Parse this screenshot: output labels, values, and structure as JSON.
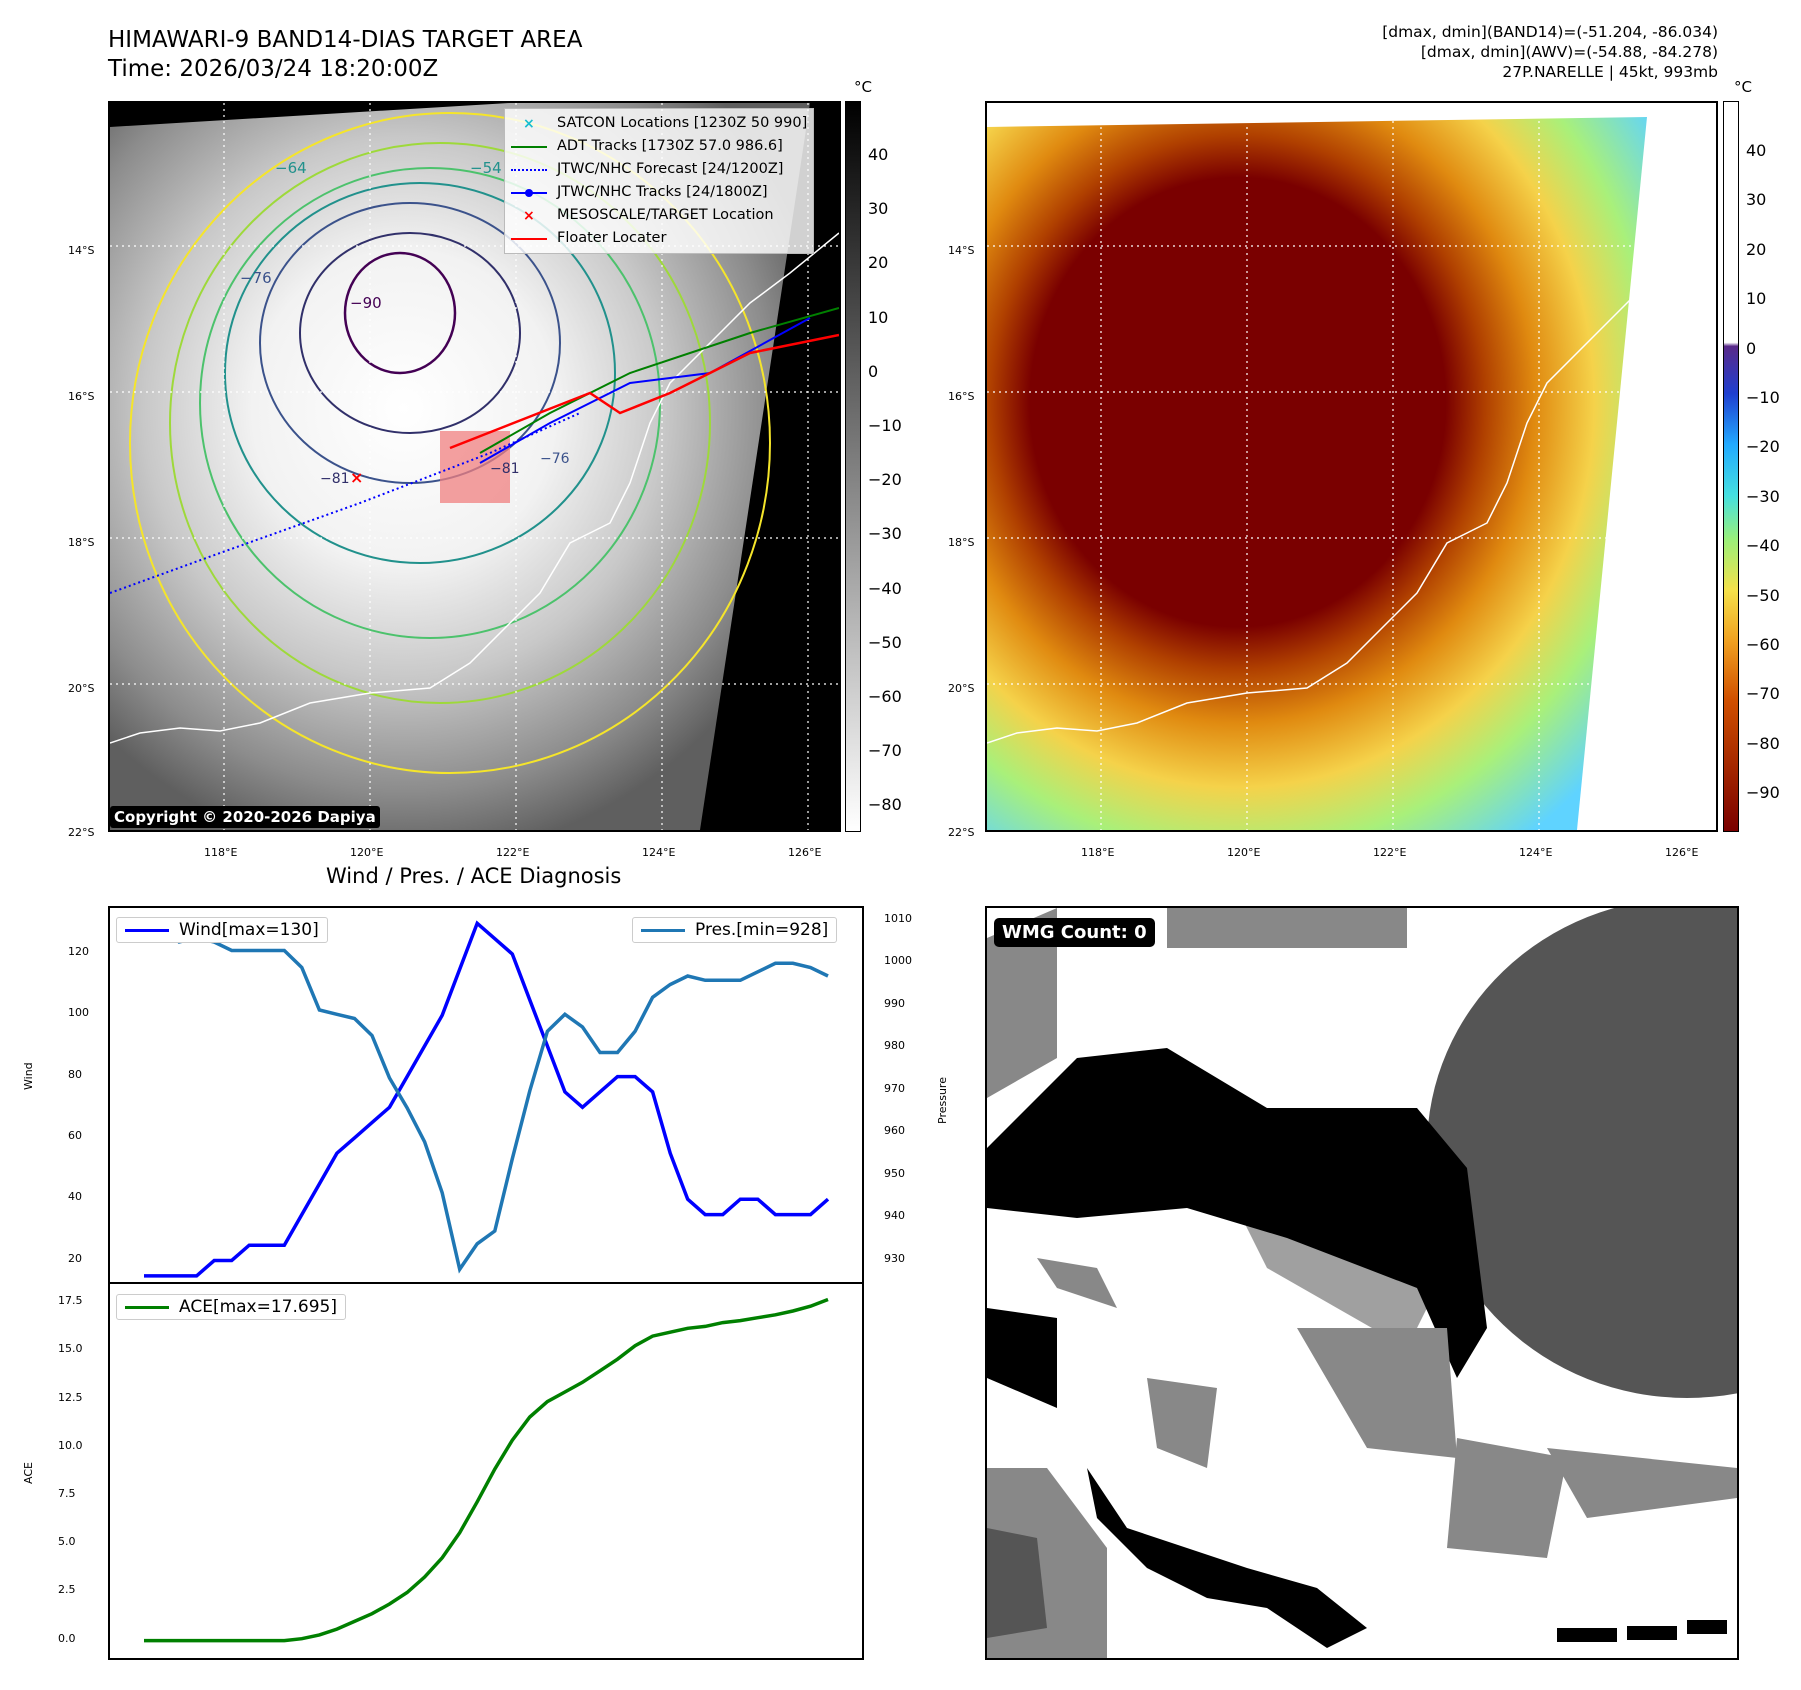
{
  "header": {
    "title_line1": "HIMAWARI-9 BAND14-DIAS TARGET AREA",
    "title_line2": "Time: 2026/03/24 18:20:00Z",
    "stats_line1": "[dmax, dmin](BAND14)=(-51.204, -86.034)",
    "stats_line2": "[dmax, dmin](AWV)=(-54.88, -84.278)",
    "stats_line3": "27P.NARELLE | 45kt, 993mb"
  },
  "maps": {
    "lat_labels": [
      "14°S",
      "16°S",
      "18°S",
      "20°S",
      "22°S"
    ],
    "lon_labels": [
      "118°E",
      "120°E",
      "122°E",
      "124°E",
      "126°E"
    ],
    "unit": "°C",
    "left_colorbar_ticks": [
      "40",
      "30",
      "20",
      "10",
      "0",
      "−10",
      "−20",
      "−30",
      "−40",
      "−50",
      "−60",
      "−70",
      "−80"
    ],
    "right_colorbar_ticks": [
      "40",
      "30",
      "20",
      "10",
      "0",
      "−10",
      "−20",
      "−30",
      "−40",
      "−50",
      "−60",
      "−70",
      "−80",
      "−90"
    ],
    "copyright": "Copyright © 2020-2026 Dapiya",
    "contour_labels": [
      "−64",
      "−54",
      "−76",
      "−90",
      "−81",
      "−81",
      "−76"
    ],
    "legend": [
      {
        "label": "SATCON Locations [1230Z 50 990]",
        "color": "#17becf",
        "marker": "x"
      },
      {
        "label": "ADT Tracks [1730Z 57.0 986.6]",
        "color": "#008000",
        "marker": "line"
      },
      {
        "label": "JTWC/NHC Forecast [24/1200Z]",
        "color": "#0000ff",
        "marker": "dotted"
      },
      {
        "label": "JTWC/NHC Tracks [24/1800Z]",
        "color": "#0000ff",
        "marker": "line-dot"
      },
      {
        "label": "MESOSCALE/TARGET Location",
        "color": "#ff0000",
        "marker": "x"
      },
      {
        "label": "Floater Locater",
        "color": "#ff0000",
        "marker": "line"
      }
    ]
  },
  "diagnosis": {
    "title": "Wind / Pres. / ACE Diagnosis",
    "wind_legend": "Wind[max=130]",
    "pres_legend": "Pres.[min=928]",
    "ace_legend": "ACE[max=17.695]",
    "wind_axis_label": "Wind",
    "pres_axis_label": "Pressure",
    "ace_axis_label": "ACE",
    "wmg_label": "WMG Count: 0"
  },
  "chart_data": [
    {
      "type": "line",
      "title": "Wind / Pres. / ACE Diagnosis",
      "x": [
        0,
        1,
        2,
        3,
        4,
        5,
        6,
        7,
        8,
        9,
        10,
        11,
        12,
        13,
        14,
        15,
        16,
        17,
        18,
        19,
        20,
        21,
        22,
        23,
        24,
        25,
        26,
        27,
        28,
        29,
        30,
        31,
        32,
        33,
        34,
        35,
        36,
        37,
        38,
        39
      ],
      "ylabel": "Wind",
      "ylim": [
        13,
        135
      ],
      "yticks": [
        20,
        40,
        60,
        80,
        100,
        120
      ],
      "series": [
        {
          "name": "Wind[max=130]",
          "color": "#0000ff",
          "values": [
            15,
            15,
            15,
            15,
            20,
            20,
            25,
            25,
            25,
            35,
            45,
            55,
            60,
            65,
            70,
            80,
            90,
            100,
            115,
            130,
            125,
            120,
            105,
            90,
            75,
            70,
            75,
            80,
            80,
            75,
            55,
            40,
            35,
            35,
            40,
            40,
            35,
            35,
            35,
            40
          ]
        }
      ],
      "series_right": [
        {
          "name": "Pres.[min=928]",
          "color": "#1f77b4",
          "ylabel": "Pressure",
          "ylim": [
            925,
            1013
          ],
          "yticks": [
            930,
            940,
            950,
            960,
            970,
            980,
            990,
            1000,
            1010
          ],
          "values": [
            1009,
            1009,
            1005,
            1006,
            1005,
            1003,
            1003,
            1003,
            1003,
            999,
            989,
            988,
            987,
            983,
            973,
            966,
            958,
            946,
            928,
            934,
            937,
            954,
            970,
            984,
            988,
            985,
            979,
            979,
            984,
            992,
            995,
            997,
            996,
            996,
            996,
            998,
            1000,
            1000,
            999,
            997
          ]
        }
      ]
    },
    {
      "type": "line",
      "x": [
        0,
        1,
        2,
        3,
        4,
        5,
        6,
        7,
        8,
        9,
        10,
        11,
        12,
        13,
        14,
        15,
        16,
        17,
        18,
        19,
        20,
        21,
        22,
        23,
        24,
        25,
        26,
        27,
        28,
        29,
        30,
        31,
        32,
        33,
        34,
        35,
        36,
        37,
        38,
        39
      ],
      "ylabel": "ACE",
      "ylim": [
        -0.9,
        18.5
      ],
      "yticks": [
        0.0,
        2.5,
        5.0,
        7.5,
        10.0,
        12.5,
        15.0,
        17.5
      ],
      "series": [
        {
          "name": "ACE[max=17.695]",
          "color": "#008000",
          "values": [
            0,
            0,
            0,
            0,
            0,
            0,
            0,
            0,
            0,
            0.1,
            0.3,
            0.6,
            1.0,
            1.4,
            1.9,
            2.5,
            3.3,
            4.3,
            5.6,
            7.2,
            8.9,
            10.4,
            11.6,
            12.4,
            12.9,
            13.4,
            14.0,
            14.6,
            15.3,
            15.8,
            16.0,
            16.2,
            16.3,
            16.5,
            16.6,
            16.75,
            16.9,
            17.1,
            17.35,
            17.695
          ]
        }
      ]
    }
  ]
}
